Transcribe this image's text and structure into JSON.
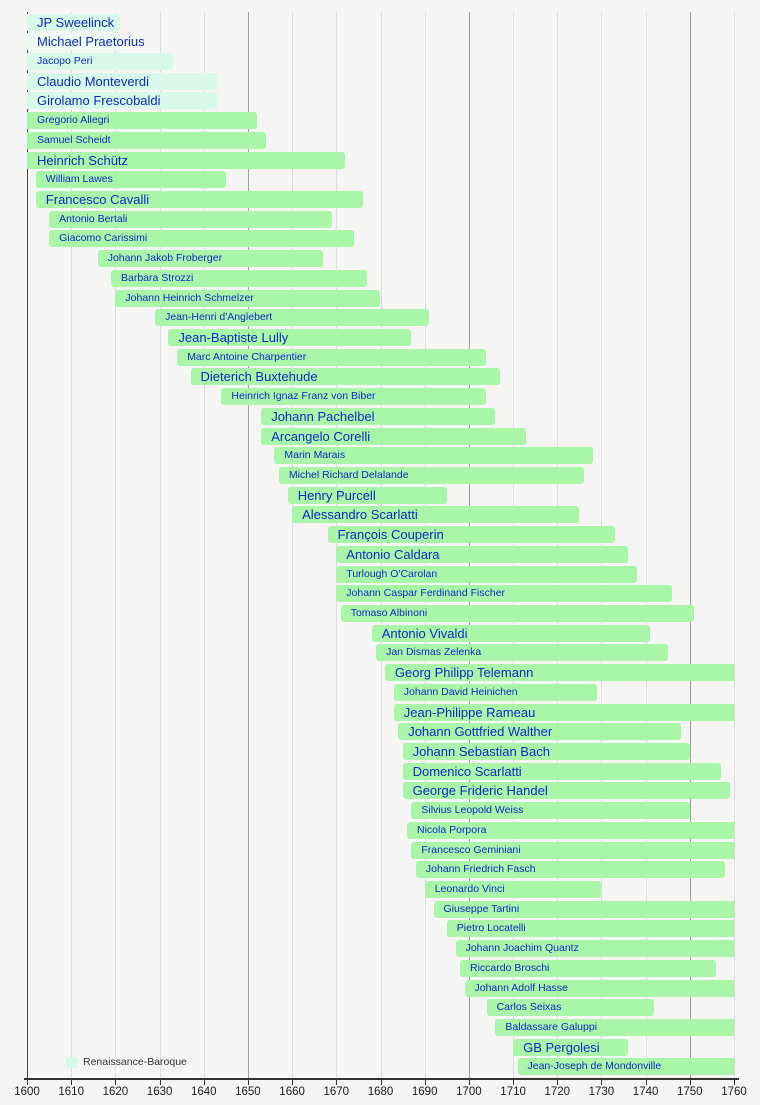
{
  "chart_data": {
    "type": "bar",
    "subtype": "timeline-lifespans",
    "title": "",
    "xlabel": "",
    "ylabel": "",
    "x_axis": {
      "min": 1600,
      "max": 1760,
      "tick_interval": 10,
      "ticks": [
        "1600",
        "1610",
        "1620",
        "1630",
        "1640",
        "1650",
        "1660",
        "1670",
        "1680",
        "1690",
        "1700",
        "1710",
        "1720",
        "1730",
        "1740",
        "1750",
        "1760"
      ],
      "major_gridlines": [
        1650,
        1700,
        1750
      ],
      "grid": true
    },
    "legend": [
      {
        "label": "Renaissance-Baroque",
        "category": "transition"
      }
    ],
    "legend_position": "bottom-left",
    "composers": [
      {
        "name": "JP Sweelinck",
        "start": 1600,
        "end": 1621,
        "category": "transition",
        "emphasis": "lg"
      },
      {
        "name": "Michael Praetorius",
        "start": 1600,
        "end": 1621,
        "category": "transition_pale",
        "emphasis": "lg"
      },
      {
        "name": "Jacopo Peri",
        "start": 1600,
        "end": 1633,
        "category": "transition",
        "emphasis": "sm"
      },
      {
        "name": "Claudio Monteverdi",
        "start": 1600,
        "end": 1643,
        "category": "transition",
        "emphasis": "lg"
      },
      {
        "name": "Girolamo Frescobaldi",
        "start": 1600,
        "end": 1643,
        "category": "transition",
        "emphasis": "lg"
      },
      {
        "name": "Gregorio Allegri",
        "start": 1600,
        "end": 1652,
        "category": "baroque",
        "emphasis": "sm"
      },
      {
        "name": "Samuel Scheidt",
        "start": 1600,
        "end": 1654,
        "category": "baroque",
        "emphasis": "sm"
      },
      {
        "name": "Heinrich Schütz",
        "start": 1600,
        "end": 1672,
        "category": "baroque",
        "emphasis": "lg"
      },
      {
        "name": "William Lawes",
        "start": 1602,
        "end": 1645,
        "category": "baroque",
        "emphasis": "sm"
      },
      {
        "name": "Francesco Cavalli",
        "start": 1602,
        "end": 1676,
        "category": "baroque",
        "emphasis": "lg"
      },
      {
        "name": "Antonio Bertali",
        "start": 1605,
        "end": 1669,
        "category": "baroque",
        "emphasis": "sm"
      },
      {
        "name": "Giacomo Carissimi",
        "start": 1605,
        "end": 1674,
        "category": "baroque",
        "emphasis": "sm"
      },
      {
        "name": "Johann Jakob Froberger",
        "start": 1616,
        "end": 1667,
        "category": "baroque",
        "emphasis": "sm"
      },
      {
        "name": "Barbara Strozzi",
        "start": 1619,
        "end": 1677,
        "category": "baroque",
        "emphasis": "sm"
      },
      {
        "name": "Johann Heinrich Schmelzer",
        "start": 1620,
        "end": 1680,
        "category": "baroque",
        "emphasis": "sm"
      },
      {
        "name": "Jean-Henri d'Anglebert",
        "start": 1629,
        "end": 1691,
        "category": "baroque",
        "emphasis": "sm"
      },
      {
        "name": "Jean-Baptiste Lully",
        "start": 1632,
        "end": 1687,
        "category": "baroque",
        "emphasis": "lg"
      },
      {
        "name": "Marc Antoine Charpentier",
        "start": 1634,
        "end": 1704,
        "category": "baroque",
        "emphasis": "sm"
      },
      {
        "name": "Dieterich Buxtehude",
        "start": 1637,
        "end": 1707,
        "category": "baroque",
        "emphasis": "lg"
      },
      {
        "name": "Heinrich Ignaz Franz von Biber",
        "start": 1644,
        "end": 1704,
        "category": "baroque",
        "emphasis": "sm"
      },
      {
        "name": "Johann Pachelbel",
        "start": 1653,
        "end": 1706,
        "category": "baroque",
        "emphasis": "lg"
      },
      {
        "name": "Arcangelo Corelli",
        "start": 1653,
        "end": 1713,
        "category": "baroque",
        "emphasis": "lg"
      },
      {
        "name": "Marin Marais",
        "start": 1656,
        "end": 1728,
        "category": "baroque",
        "emphasis": "sm"
      },
      {
        "name": "Michel Richard Delalande",
        "start": 1657,
        "end": 1726,
        "category": "baroque",
        "emphasis": "sm"
      },
      {
        "name": "Henry Purcell",
        "start": 1659,
        "end": 1695,
        "category": "baroque",
        "emphasis": "lg"
      },
      {
        "name": "Alessandro Scarlatti",
        "start": 1660,
        "end": 1725,
        "category": "baroque",
        "emphasis": "lg"
      },
      {
        "name": "François Couperin",
        "start": 1668,
        "end": 1733,
        "category": "baroque",
        "emphasis": "lg"
      },
      {
        "name": "Antonio Caldara",
        "start": 1670,
        "end": 1736,
        "category": "baroque",
        "emphasis": "lg"
      },
      {
        "name": "Turlough O'Carolan",
        "start": 1670,
        "end": 1738,
        "category": "baroque",
        "emphasis": "sm"
      },
      {
        "name": "Johann Caspar Ferdinand Fischer",
        "start": 1670,
        "end": 1746,
        "category": "baroque",
        "emphasis": "sm"
      },
      {
        "name": "Tomaso Albinoni",
        "start": 1671,
        "end": 1751,
        "category": "baroque",
        "emphasis": "sm"
      },
      {
        "name": "Antonio Vivaldi",
        "start": 1678,
        "end": 1741,
        "category": "baroque",
        "emphasis": "lg"
      },
      {
        "name": "Jan Dismas Zelenka",
        "start": 1679,
        "end": 1745,
        "category": "baroque",
        "emphasis": "sm"
      },
      {
        "name": "Georg Philipp Telemann",
        "start": 1681,
        "end": 1760,
        "category": "baroque",
        "emphasis": "lg"
      },
      {
        "name": "Johann David Heinichen",
        "start": 1683,
        "end": 1729,
        "category": "baroque",
        "emphasis": "sm"
      },
      {
        "name": "Jean-Philippe Rameau",
        "start": 1683,
        "end": 1760,
        "category": "baroque",
        "emphasis": "lg"
      },
      {
        "name": "Johann Gottfried Walther",
        "start": 1684,
        "end": 1748,
        "category": "baroque",
        "emphasis": "lg"
      },
      {
        "name": "Johann Sebastian Bach",
        "start": 1685,
        "end": 1750,
        "category": "baroque",
        "emphasis": "lg"
      },
      {
        "name": "Domenico Scarlatti",
        "start": 1685,
        "end": 1757,
        "category": "baroque",
        "emphasis": "lg"
      },
      {
        "name": "George Frideric Handel",
        "start": 1685,
        "end": 1759,
        "category": "baroque",
        "emphasis": "lg"
      },
      {
        "name": "Silvius Leopold Weiss",
        "start": 1687,
        "end": 1750,
        "category": "baroque",
        "emphasis": "sm"
      },
      {
        "name": "Nicola Porpora",
        "start": 1686,
        "end": 1760,
        "category": "baroque",
        "emphasis": "sm"
      },
      {
        "name": "Francesco Geminiani",
        "start": 1687,
        "end": 1760,
        "category": "baroque",
        "emphasis": "sm"
      },
      {
        "name": "Johann Friedrich Fasch",
        "start": 1688,
        "end": 1758,
        "category": "baroque",
        "emphasis": "sm"
      },
      {
        "name": "Leonardo Vinci",
        "start": 1690,
        "end": 1730,
        "category": "baroque",
        "emphasis": "sm"
      },
      {
        "name": "Giuseppe Tartini",
        "start": 1692,
        "end": 1760,
        "category": "baroque",
        "emphasis": "sm"
      },
      {
        "name": "Pietro Locatelli",
        "start": 1695,
        "end": 1760,
        "category": "baroque",
        "emphasis": "sm"
      },
      {
        "name": "Johann Joachim Quantz",
        "start": 1697,
        "end": 1760,
        "category": "baroque",
        "emphasis": "sm"
      },
      {
        "name": "Riccardo Broschi",
        "start": 1698,
        "end": 1756,
        "category": "baroque",
        "emphasis": "sm"
      },
      {
        "name": "Johann Adolf Hasse",
        "start": 1699,
        "end": 1760,
        "category": "baroque",
        "emphasis": "sm"
      },
      {
        "name": "Carlos Seixas",
        "start": 1704,
        "end": 1742,
        "category": "baroque",
        "emphasis": "sm"
      },
      {
        "name": "Baldassare Galuppi",
        "start": 1706,
        "end": 1760,
        "category": "baroque",
        "emphasis": "sm"
      },
      {
        "name": "GB Pergolesi",
        "start": 1710,
        "end": 1736,
        "category": "baroque",
        "emphasis": "lg"
      },
      {
        "name": "Jean-Joseph de Mondonville",
        "start": 1711,
        "end": 1760,
        "category": "baroque",
        "emphasis": "sm"
      }
    ]
  },
  "colors": {
    "background": "#f5f5f4",
    "transition": "#d8f8e9",
    "transition_pale": "#edfbf3",
    "baroque": "#a9f6a9",
    "label_text": "#0b2cc4",
    "axis": "#333333",
    "grid_minor": "#dcdcdc",
    "grid_major": "#9e9e9e",
    "grid_origin": "#474747"
  }
}
